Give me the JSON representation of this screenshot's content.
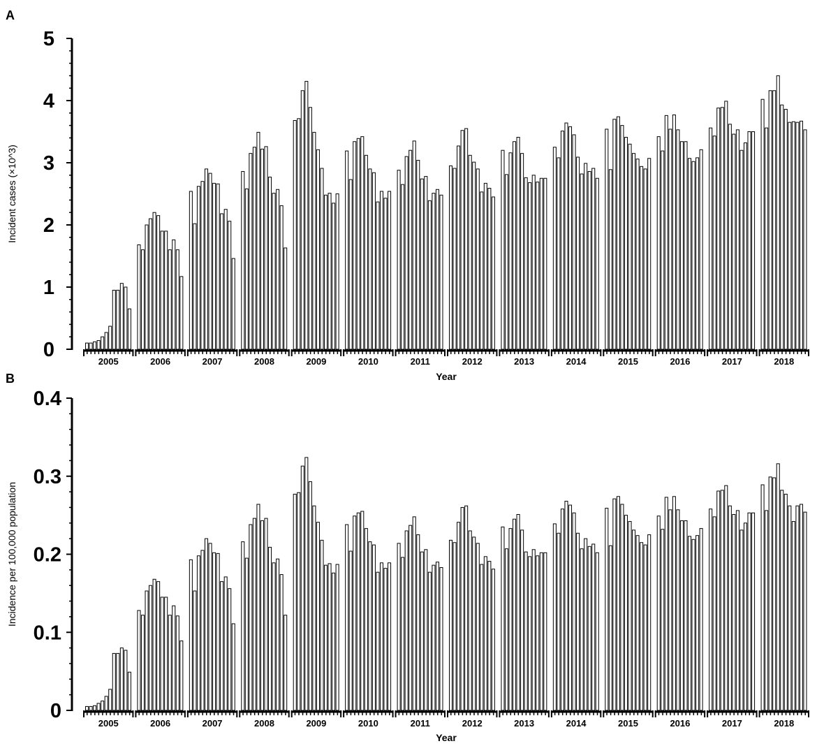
{
  "chart_data": [
    {
      "panel": "A",
      "type": "bar",
      "xlabel": "Year",
      "ylabel": "Incident cases (×10^3)",
      "ylim": [
        0,
        5
      ],
      "yticks": [
        "0",
        "1",
        "2",
        "3",
        "4",
        "5"
      ],
      "categories": [
        "2005",
        "2006",
        "2007",
        "2008",
        "2009",
        "2010",
        "2011",
        "2012",
        "2013",
        "2014",
        "2015",
        "2016",
        "2017",
        "2018"
      ],
      "series": [
        {
          "values": [
            [
              0.1,
              0.1,
              0.12,
              0.14,
              0.2,
              0.27,
              0.37,
              0.95,
              0.95,
              1.06,
              1.0,
              0.65
            ],
            [
              1.68,
              1.6,
              2.0,
              2.1,
              2.2,
              2.15,
              1.9,
              1.9,
              1.6,
              1.76,
              1.6,
              1.17
            ],
            [
              2.54,
              2.02,
              2.62,
              2.7,
              2.9,
              2.83,
              2.67,
              2.66,
              2.18,
              2.25,
              2.06,
              1.46
            ],
            [
              2.86,
              2.58,
              3.15,
              3.25,
              3.49,
              3.22,
              3.26,
              2.77,
              2.51,
              2.57,
              2.31,
              1.63
            ],
            [
              3.68,
              3.71,
              4.16,
              4.31,
              3.89,
              3.49,
              3.21,
              2.91,
              2.48,
              2.51,
              2.35,
              2.5
            ],
            [
              3.19,
              2.73,
              3.34,
              3.39,
              3.42,
              3.12,
              2.9,
              2.84,
              2.37,
              2.54,
              2.43,
              2.54
            ],
            [
              2.88,
              2.65,
              3.1,
              3.2,
              3.35,
              3.04,
              2.74,
              2.78,
              2.39,
              2.51,
              2.57,
              2.48
            ],
            [
              2.95,
              2.91,
              3.27,
              3.52,
              3.55,
              3.12,
              3.01,
              2.9,
              2.53,
              2.67,
              2.59,
              2.45
            ],
            [
              3.2,
              2.81,
              3.16,
              3.34,
              3.41,
              3.15,
              2.76,
              2.68,
              2.8,
              2.69,
              2.75,
              2.75
            ],
            [
              3.25,
              3.08,
              3.51,
              3.64,
              3.58,
              3.45,
              3.09,
              2.82,
              2.99,
              2.86,
              2.91,
              2.75
            ],
            [
              3.54,
              2.89,
              3.7,
              3.74,
              3.6,
              3.41,
              3.3,
              3.15,
              3.06,
              2.94,
              2.9,
              3.07
            ],
            [
              3.42,
              3.19,
              3.76,
              3.54,
              3.77,
              3.53,
              3.34,
              3.34,
              3.07,
              3.02,
              3.08,
              3.21
            ],
            [
              3.56,
              3.43,
              3.88,
              3.89,
              3.99,
              3.62,
              3.46,
              3.53,
              3.2,
              3.32,
              3.5,
              3.5
            ],
            [
              4.02,
              3.56,
              4.16,
              4.16,
              4.4,
              3.93,
              3.86,
              3.65,
              3.66,
              3.65,
              3.67,
              3.53
            ]
          ]
        }
      ]
    },
    {
      "panel": "B",
      "type": "bar",
      "xlabel": "Year",
      "ylabel": "Incidence per 100,000 population",
      "ylim": [
        0,
        0.4
      ],
      "yticks": [
        "0",
        "0.1",
        "0.2",
        "0.3",
        "0.4"
      ],
      "categories": [
        "2005",
        "2006",
        "2007",
        "2008",
        "2009",
        "2010",
        "2011",
        "2012",
        "2013",
        "2014",
        "2015",
        "2016",
        "2017",
        "2018"
      ],
      "series": [
        {
          "values": [
            [
              0.005,
              0.005,
              0.006,
              0.009,
              0.012,
              0.018,
              0.027,
              0.073,
              0.073,
              0.08,
              0.077,
              0.049
            ],
            [
              0.128,
              0.122,
              0.153,
              0.16,
              0.168,
              0.165,
              0.145,
              0.145,
              0.122,
              0.134,
              0.121,
              0.089
            ],
            [
              0.193,
              0.153,
              0.198,
              0.205,
              0.22,
              0.214,
              0.202,
              0.201,
              0.165,
              0.171,
              0.156,
              0.111
            ],
            [
              0.216,
              0.195,
              0.238,
              0.246,
              0.264,
              0.243,
              0.246,
              0.209,
              0.189,
              0.194,
              0.174,
              0.122
            ],
            [
              0.277,
              0.279,
              0.313,
              0.324,
              0.293,
              0.262,
              0.241,
              0.218,
              0.186,
              0.188,
              0.176,
              0.187
            ],
            [
              0.238,
              0.204,
              0.249,
              0.253,
              0.255,
              0.233,
              0.216,
              0.212,
              0.177,
              0.189,
              0.182,
              0.189
            ],
            [
              0.214,
              0.196,
              0.23,
              0.237,
              0.248,
              0.225,
              0.203,
              0.206,
              0.177,
              0.186,
              0.19,
              0.183
            ],
            [
              0.218,
              0.215,
              0.241,
              0.26,
              0.262,
              0.23,
              0.222,
              0.214,
              0.187,
              0.197,
              0.191,
              0.181
            ],
            [
              0.235,
              0.207,
              0.233,
              0.245,
              0.251,
              0.231,
              0.203,
              0.197,
              0.206,
              0.198,
              0.202,
              0.202
            ],
            [
              0.239,
              0.227,
              0.258,
              0.268,
              0.263,
              0.253,
              0.227,
              0.207,
              0.22,
              0.21,
              0.213,
              0.202
            ],
            [
              0.259,
              0.211,
              0.271,
              0.274,
              0.264,
              0.25,
              0.242,
              0.231,
              0.224,
              0.215,
              0.212,
              0.225
            ],
            [
              0.249,
              0.232,
              0.273,
              0.257,
              0.274,
              0.257,
              0.243,
              0.243,
              0.223,
              0.219,
              0.224,
              0.233
            ],
            [
              0.258,
              0.248,
              0.281,
              0.282,
              0.288,
              0.262,
              0.251,
              0.256,
              0.231,
              0.24,
              0.253,
              0.253
            ],
            [
              0.289,
              0.256,
              0.299,
              0.298,
              0.316,
              0.282,
              0.277,
              0.262,
              0.242,
              0.262,
              0.264,
              0.254
            ]
          ]
        }
      ]
    }
  ]
}
